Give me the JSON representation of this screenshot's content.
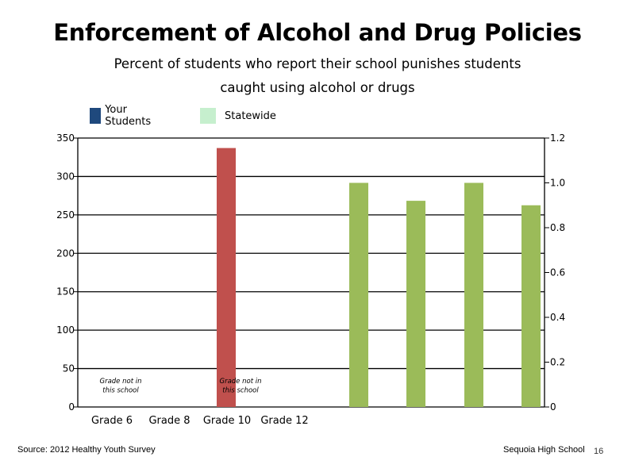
{
  "chart_data": {
    "type": "bar",
    "title": "Enforcement of Alcohol and Drug Policies",
    "subtitle_lines": [
      "Percent of students who report their school punishes students",
      "caught using alcohol or drugs"
    ],
    "categories": [
      "Grade 6",
      "Grade 8",
      "Grade 10",
      "Grade 12"
    ],
    "series": [
      {
        "name": "Your Students",
        "color": "#1F497D",
        "values": [
          null,
          null,
          null,
          null
        ]
      },
      {
        "name": "Statewide",
        "color": "#C6EFCE",
        "values": [
          null,
          null,
          null,
          null
        ]
      }
    ],
    "extra_bars": [
      {
        "value": 337,
        "color": "#C0504D",
        "axis": "left"
      },
      {
        "value": 1.0,
        "color": "#9BBB59",
        "axis": "right"
      },
      {
        "value": 0.92,
        "color": "#9BBB59",
        "axis": "right"
      },
      {
        "value": 1.0,
        "color": "#9BBB59",
        "axis": "right"
      },
      {
        "value": 0.9,
        "color": "#9BBB59",
        "axis": "right"
      }
    ],
    "y_left": {
      "ticks": [
        0,
        50,
        100,
        150,
        200,
        250,
        300,
        350
      ],
      "ylim": [
        0,
        350
      ]
    },
    "y_right": {
      "ticks": [
        "0",
        "0.2",
        "0.4",
        "0.6",
        "0.8",
        "1.0",
        "1.2"
      ],
      "ylim": [
        0,
        1.2
      ]
    },
    "annotations": [
      {
        "text_lines": [
          "Grade not in",
          "this school"
        ],
        "category": "Grade 6"
      },
      {
        "text_lines": [
          "Grade not in",
          "this school"
        ],
        "category": "Grade 10"
      }
    ],
    "grid": true,
    "legend_position": "top-left"
  },
  "footer": {
    "source": "Source: 2012 Healthy Youth Survey",
    "school": "Sequoia High School",
    "page": "16"
  }
}
